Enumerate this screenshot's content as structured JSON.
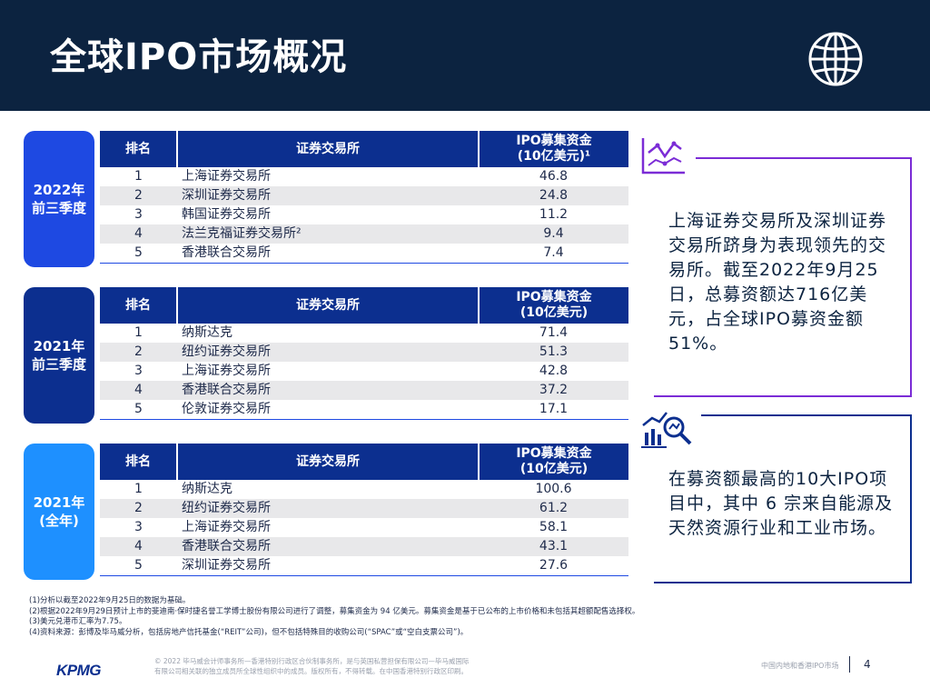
{
  "title": "全球IPO市场概况",
  "sections": [
    {
      "year_line1": "2022年",
      "year_line2": "前三季度",
      "headers": {
        "rank": "排名",
        "exchange": "证券交易所",
        "amount_line1": "IPO募集资金",
        "amount_line2": "(10亿美元)¹"
      },
      "rows": [
        {
          "rank": "1",
          "exchange": "上海证券交易所",
          "amount": "46.8"
        },
        {
          "rank": "2",
          "exchange": "深圳证券交易所",
          "amount": "24.8"
        },
        {
          "rank": "3",
          "exchange": "韩国证券交易所",
          "amount": "11.2"
        },
        {
          "rank": "4",
          "exchange": "法兰克福证券交易所²",
          "amount": "9.4"
        },
        {
          "rank": "5",
          "exchange": "香港联合交易所",
          "amount": "7.4"
        }
      ]
    },
    {
      "year_line1": "2021年",
      "year_line2": "前三季度",
      "headers": {
        "rank": "排名",
        "exchange": "证券交易所",
        "amount_line1": "IPO募集资金",
        "amount_line2": "(10亿美元)"
      },
      "rows": [
        {
          "rank": "1",
          "exchange": "纳斯达克",
          "amount": "71.4"
        },
        {
          "rank": "2",
          "exchange": "纽约证券交易所",
          "amount": "51.3"
        },
        {
          "rank": "3",
          "exchange": "上海证券交易所",
          "amount": "42.8"
        },
        {
          "rank": "4",
          "exchange": "香港联合交易所",
          "amount": "37.2"
        },
        {
          "rank": "5",
          "exchange": "伦敦证券交易所",
          "amount": "17.1"
        }
      ]
    },
    {
      "year_line1": "2021年",
      "year_line2": "(全年)",
      "headers": {
        "rank": "排名",
        "exchange": "证券交易所",
        "amount_line1": "IPO募集资金",
        "amount_line2": "(10亿美元)"
      },
      "rows": [
        {
          "rank": "1",
          "exchange": "纳斯达克",
          "amount": "100.6"
        },
        {
          "rank": "2",
          "exchange": "纽约证券交易所",
          "amount": "61.2"
        },
        {
          "rank": "3",
          "exchange": "上海证券交易所",
          "amount": "58.1"
        },
        {
          "rank": "4",
          "exchange": "香港联合交易所",
          "amount": "43.1"
        },
        {
          "rank": "5",
          "exchange": "深圳证券交易所",
          "amount": "27.6"
        }
      ]
    }
  ],
  "insights": {
    "box1": "上海证券交易所及深圳证券交易所跻身为表现领先的交易所。截至2022年9月25日，总募资额达716亿美元，占全球IPO募资金额51%。",
    "box2": "在募资额最高的10大IPO项目中，其中 6 宗来自能源及天然资源行业和工业市场。"
  },
  "notes": [
    "(1)分析以截至2022年9月25日的数据为基础。",
    "(2)根据2022年9月29日预计上市的斐迪南·保时捷名誉工学博士股份有限公司进行了调整，募集资金为 94 亿美元。募集资金是基于已公布的上市价格和未包括其超额配售选择权。",
    "(3)美元兑港币汇率为7.75。",
    "(4)资料来源：彭博及毕马威分析，包括房地产信托基金(“REIT”公司)，但不包括特殊目的收购公司(“SPAC”或“空白支票公司”)。"
  ],
  "footer": {
    "logo": "KPMG",
    "copyright_line1": "© 2022 毕马威会计师事务所—香港特别行政区合伙制事务所，是与英国私营担保有限公司—毕马威国际",
    "copyright_line2": "有限公司相关联的独立成员所全球性组织中的成员。版权所有，不得转载。在中国香港特别行政区印刷。",
    "report_name": "中国内地和香港IPO市场",
    "page_number": "4"
  },
  "colors": {
    "navy": "#0c2340",
    "blue": "#1e49e2",
    "dark_blue": "#0c2f8f",
    "light_blue": "#1e90ff",
    "purple": "#7b2cd6"
  },
  "icons": [
    "globe-icon",
    "line-chart-icon",
    "magnifier-chart-icon"
  ]
}
